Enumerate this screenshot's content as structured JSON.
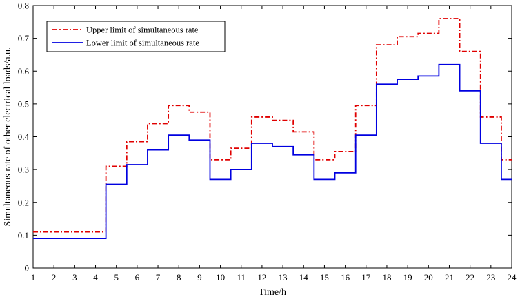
{
  "chart_data": {
    "type": "line",
    "step": "centered",
    "xlabel": "Time/h",
    "ylabel": "Simultaneous rate of other electrical loads/a.u.",
    "xlim": [
      1,
      24
    ],
    "ylim": [
      0,
      0.8
    ],
    "xticks": [
      1,
      2,
      3,
      4,
      5,
      6,
      7,
      8,
      9,
      10,
      11,
      12,
      13,
      14,
      15,
      16,
      17,
      18,
      19,
      20,
      21,
      22,
      23,
      24
    ],
    "yticks": [
      0,
      0.1,
      0.2,
      0.3,
      0.4,
      0.5,
      0.6,
      0.7,
      0.8
    ],
    "grid": false,
    "legend_position": "top-left",
    "x": [
      1,
      2,
      3,
      4,
      5,
      6,
      7,
      8,
      9,
      10,
      11,
      12,
      13,
      14,
      15,
      16,
      17,
      18,
      19,
      20,
      21,
      22,
      23,
      24
    ],
    "series": [
      {
        "name": "Upper limit of simultaneous rate",
        "color": "#e00000",
        "style": "dash-dot",
        "values": [
          0.11,
          0.11,
          0.11,
          0.11,
          0.31,
          0.385,
          0.44,
          0.495,
          0.475,
          0.33,
          0.365,
          0.46,
          0.45,
          0.415,
          0.33,
          0.355,
          0.495,
          0.68,
          0.705,
          0.715,
          0.76,
          0.66,
          0.46,
          0.33
        ]
      },
      {
        "name": "Lower limit of simultaneous rate",
        "color": "#0000e0",
        "style": "solid",
        "values": [
          0.09,
          0.09,
          0.09,
          0.09,
          0.255,
          0.315,
          0.36,
          0.405,
          0.39,
          0.27,
          0.3,
          0.38,
          0.37,
          0.345,
          0.27,
          0.29,
          0.405,
          0.56,
          0.575,
          0.585,
          0.62,
          0.54,
          0.38,
          0.27
        ]
      }
    ]
  }
}
